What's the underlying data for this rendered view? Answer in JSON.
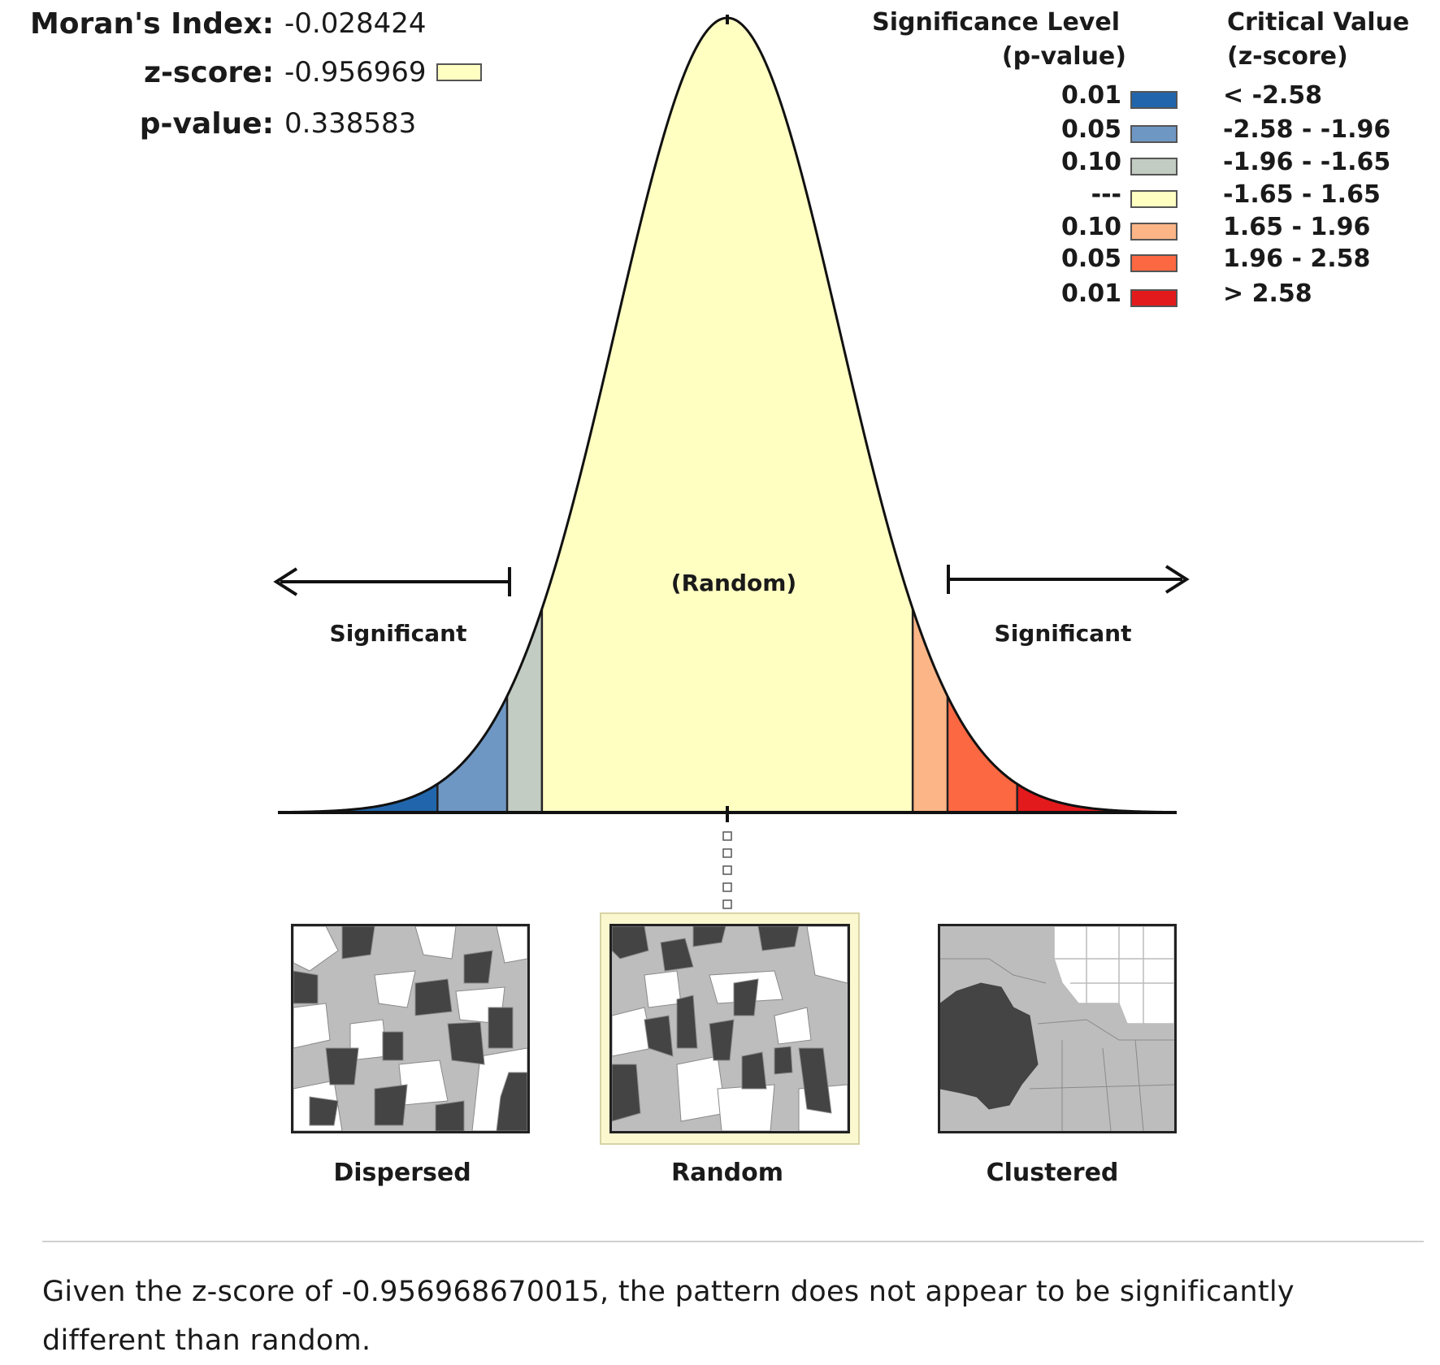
{
  "stats": [
    {
      "label": "Moran's Index:",
      "value": "-0.028424"
    },
    {
      "label": "z-score:",
      "value": "-0.956969"
    },
    {
      "label": "p-value:",
      "value": "0.338583"
    }
  ],
  "legend": {
    "pvalue_header": [
      "Significance Level",
      "(p-value)"
    ],
    "zscore_header": [
      "Critical Value",
      "(z-score)"
    ],
    "rows": [
      {
        "p": "0.01",
        "z": "< -2.58",
        "color": "#2166ac"
      },
      {
        "p": "0.05",
        "z": "-2.58 - -1.96",
        "color": "#6f97c4"
      },
      {
        "p": "0.10",
        "z": "-1.96 - -1.65",
        "color": "#c2ccc2"
      },
      {
        "p": "---",
        "z": "-1.65 - 1.65",
        "color": "#ffffc2"
      },
      {
        "p": "0.10",
        "z": "1.65 - 1.96",
        "color": "#fcb586"
      },
      {
        "p": "0.05",
        "z": "1.96 - 2.58",
        "color": "#fb6841"
      },
      {
        "p": "0.01",
        "z": "> 2.58",
        "color": "#e31a1c"
      }
    ]
  },
  "chart_data": {
    "type": "area",
    "distribution": "standard normal",
    "x_range": [
      -4,
      4
    ],
    "observed_zscore": -0.956969,
    "bands": [
      {
        "from": -4,
        "to": -2.58,
        "color": "#2166ac"
      },
      {
        "from": -2.58,
        "to": -1.96,
        "color": "#6f97c4"
      },
      {
        "from": -1.96,
        "to": -1.65,
        "color": "#c2ccc2"
      },
      {
        "from": -1.65,
        "to": 1.65,
        "color": "#ffffc2"
      },
      {
        "from": 1.65,
        "to": 1.96,
        "color": "#fcb586"
      },
      {
        "from": 1.96,
        "to": 2.58,
        "color": "#fb6841"
      },
      {
        "from": 2.58,
        "to": 4,
        "color": "#e31a1c"
      }
    ],
    "annotations": {
      "center": "(Random)",
      "left": "Significant",
      "right": "Significant"
    }
  },
  "patterns": [
    "Dispersed",
    "Random",
    "Clustered"
  ],
  "highlighted_pattern": "Random",
  "conclusion": "Given the z-score of -0.956968670015, the pattern does not appear to be significantly different than random."
}
